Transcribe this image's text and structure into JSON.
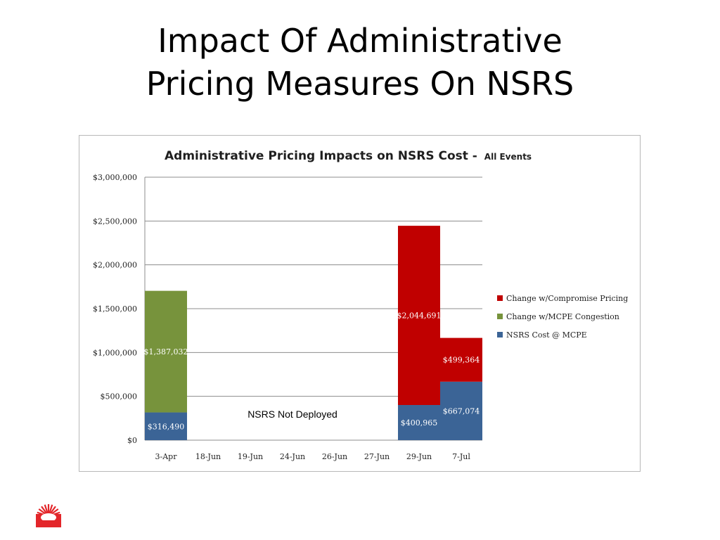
{
  "slide": {
    "title_line1": "Impact Of Administrative",
    "title_line2": "Pricing Measures On NSRS"
  },
  "chart_data": {
    "type": "bar",
    "stacked": true,
    "title": "Administrative Pricing Impacts on NSRS Cost -",
    "subtitle": "All Events",
    "xlabel": "",
    "ylabel": "",
    "categories": [
      "3-Apr",
      "18-Jun",
      "19-Jun",
      "24-Jun",
      "26-Jun",
      "27-Jun",
      "29-Jun",
      "7-Jul"
    ],
    "ylim": [
      0,
      3000000
    ],
    "yticks": [
      0,
      500000,
      1000000,
      1500000,
      2000000,
      2500000,
      3000000
    ],
    "ytick_labels": [
      "$0",
      "$500,000",
      "$1,000,000",
      "$1,500,000",
      "$2,000,000",
      "$2,500,000",
      "$3,000,000"
    ],
    "grid": true,
    "legend_position": "right",
    "series": [
      {
        "name": "NSRS Cost @ MCPE",
        "color": "#3b6496",
        "values": [
          316490,
          0,
          0,
          0,
          0,
          0,
          400965,
          667074
        ],
        "labels": [
          "$316,490",
          "",
          "",
          "",
          "",
          "",
          "$400,965",
          "$667,074"
        ]
      },
      {
        "name": "Change w/MCPE Congestion",
        "color": "#77933c",
        "values": [
          1387032,
          0,
          0,
          0,
          0,
          0,
          0,
          0
        ],
        "labels": [
          "$1,387,032",
          "",
          "",
          "",
          "",
          "",
          "",
          ""
        ]
      },
      {
        "name": "Change w/Compromise Pricing",
        "color": "#c00000",
        "values": [
          0,
          0,
          0,
          0,
          0,
          0,
          2044691,
          499364
        ],
        "labels": [
          "",
          "",
          "",
          "",
          "",
          "",
          "$2,044,691",
          "$499,364"
        ]
      }
    ],
    "legend_order": [
      "Change w/Compromise Pricing",
      "Change w/MCPE Congestion",
      "NSRS Cost @ MCPE"
    ],
    "annotations": [
      {
        "text": "NSRS Not Deployed",
        "category_from": "18-Jun",
        "category_to": "27-Jun"
      }
    ]
  },
  "logo": {
    "icon": "sun-logo-icon",
    "color": "#e3262a"
  }
}
